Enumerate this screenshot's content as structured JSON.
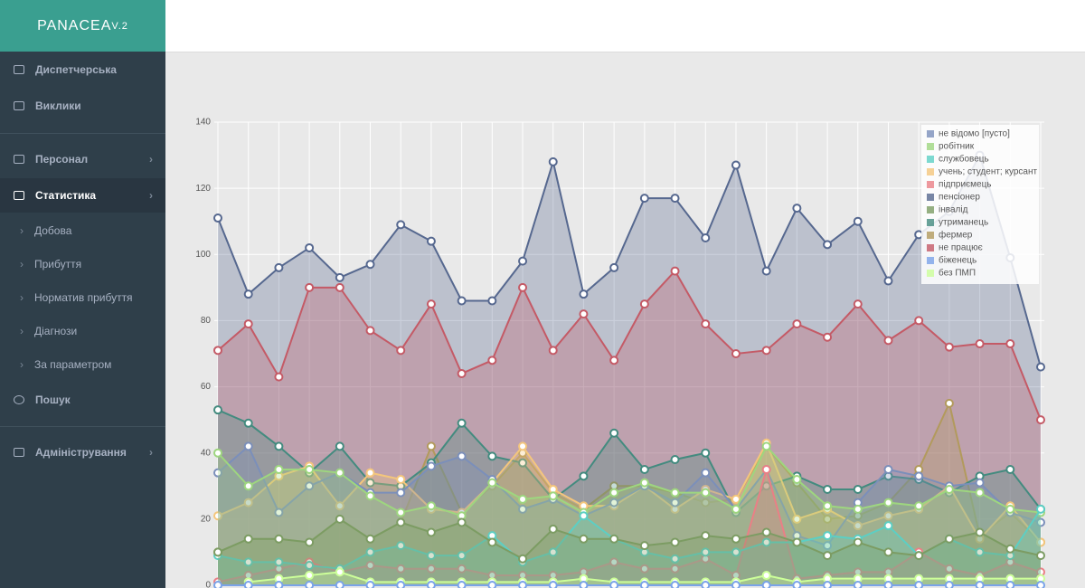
{
  "sidebar": {
    "brand": "PANACEA",
    "version": "V.2",
    "menu": [
      {
        "label": "Диспетчерська"
      },
      {
        "label": "Виклики"
      },
      {
        "label": "Персонал"
      },
      {
        "label": "Статистика"
      },
      {
        "label": "Добова"
      },
      {
        "label": "Прибуття"
      },
      {
        "label": "Норматив прибуття"
      },
      {
        "label": "Діагнози"
      },
      {
        "label": "За параметром"
      },
      {
        "label": "Пошук"
      },
      {
        "label": "Адміністрування"
      }
    ]
  },
  "chart_data": {
    "type": "area",
    "legend": "top-right",
    "grid": true,
    "categories": [
      null,
      null,
      null,
      null,
      null,
      null,
      null,
      null,
      null,
      null,
      null,
      null,
      null,
      null,
      null,
      null,
      null,
      null,
      null,
      null,
      null,
      null,
      null,
      null,
      null,
      null,
      null,
      null
    ],
    "ylim": [
      0,
      140
    ],
    "yticks": [
      0,
      20,
      40,
      60,
      80,
      100,
      120,
      140
    ],
    "series": [
      {
        "name": "не відомо [пусто]",
        "color": "#7b8fba",
        "values": [
          34,
          42,
          22,
          30,
          34,
          28,
          28,
          36,
          39,
          32,
          23,
          26,
          21,
          25,
          30,
          25,
          34,
          23,
          35,
          15,
          12,
          25,
          35,
          33,
          30,
          31,
          22,
          19
        ]
      },
      {
        "name": "робітник",
        "color": "#9ed67f",
        "values": [
          40,
          30,
          35,
          35,
          34,
          27,
          22,
          24,
          21,
          31,
          26,
          27,
          22,
          28,
          31,
          28,
          28,
          23,
          42,
          32,
          24,
          23,
          25,
          24,
          29,
          28,
          23,
          22
        ]
      },
      {
        "name": "службовець",
        "color": "#5ccfc4",
        "values": [
          9,
          7,
          7,
          6,
          5,
          10,
          12,
          9,
          9,
          15,
          7,
          10,
          21,
          14,
          10,
          8,
          10,
          10,
          13,
          13,
          15,
          14,
          18,
          9,
          14,
          10,
          9,
          23
        ]
      },
      {
        "name": "учень; студент; курсант",
        "color": "#f4c67c",
        "values": [
          21,
          25,
          33,
          36,
          24,
          34,
          32,
          23,
          22,
          31,
          42,
          29,
          24,
          24,
          30,
          23,
          29,
          26,
          43,
          20,
          23,
          18,
          21,
          23,
          30,
          14,
          24,
          13
        ]
      },
      {
        "name": "підприємець",
        "color": "#ea7f86",
        "values": [
          1,
          3,
          5,
          7,
          4,
          6,
          5,
          5,
          5,
          3,
          3,
          3,
          4,
          7,
          5,
          5,
          8,
          3,
          35,
          2,
          3,
          4,
          4,
          10,
          5,
          3,
          7,
          4
        ]
      },
      {
        "name": "пенсіонер",
        "color": "#56688f",
        "values": [
          111,
          88,
          96,
          102,
          93,
          97,
          109,
          104,
          86,
          86,
          98,
          128,
          88,
          96,
          117,
          117,
          105,
          127,
          95,
          114,
          103,
          110,
          92,
          106,
          113,
          130,
          99,
          66
        ]
      },
      {
        "name": "інвалід",
        "color": "#7c9c63",
        "values": [
          10,
          14,
          14,
          13,
          20,
          14,
          19,
          16,
          19,
          13,
          8,
          17,
          14,
          14,
          12,
          13,
          15,
          14,
          16,
          13,
          9,
          13,
          10,
          9,
          14,
          16,
          11,
          9
        ]
      },
      {
        "name": "утриманець",
        "color": "#438b7f",
        "values": [
          53,
          49,
          42,
          34,
          42,
          31,
          30,
          37,
          49,
          39,
          37,
          26,
          33,
          46,
          35,
          38,
          40,
          22,
          30,
          33,
          29,
          29,
          33,
          32,
          28,
          33,
          35,
          23
        ]
      },
      {
        "name": "фермер",
        "color": "#b29a5c",
        "values": [
          10,
          14,
          14,
          13,
          20,
          14,
          19,
          42,
          22,
          30,
          40,
          28,
          23,
          30,
          30,
          28,
          25,
          26,
          42,
          31,
          20,
          21,
          25,
          35,
          55,
          15,
          22,
          13
        ]
      },
      {
        "name": "не працює",
        "color": "#c45a66",
        "values": [
          71,
          79,
          63,
          90,
          90,
          77,
          71,
          85,
          64,
          68,
          90,
          71,
          82,
          68,
          85,
          95,
          79,
          70,
          71,
          79,
          75,
          85,
          74,
          80,
          72,
          73,
          73,
          50
        ]
      },
      {
        "name": "біженець",
        "color": "#7aa3e8",
        "values": [
          0,
          0,
          0,
          0,
          0,
          0,
          0,
          0,
          0,
          0,
          0,
          0,
          0,
          0,
          0,
          0,
          0,
          0,
          0,
          0,
          0,
          0,
          0,
          0,
          0,
          0,
          0,
          0
        ]
      },
      {
        "name": "без ПМП",
        "color": "#ccff99",
        "values": [
          null,
          1,
          2,
          3,
          4,
          1,
          1,
          1,
          1,
          1,
          1,
          1,
          2,
          1,
          1,
          1,
          1,
          1,
          3,
          1,
          2,
          2,
          2,
          2,
          2,
          2,
          2,
          2
        ]
      }
    ]
  }
}
